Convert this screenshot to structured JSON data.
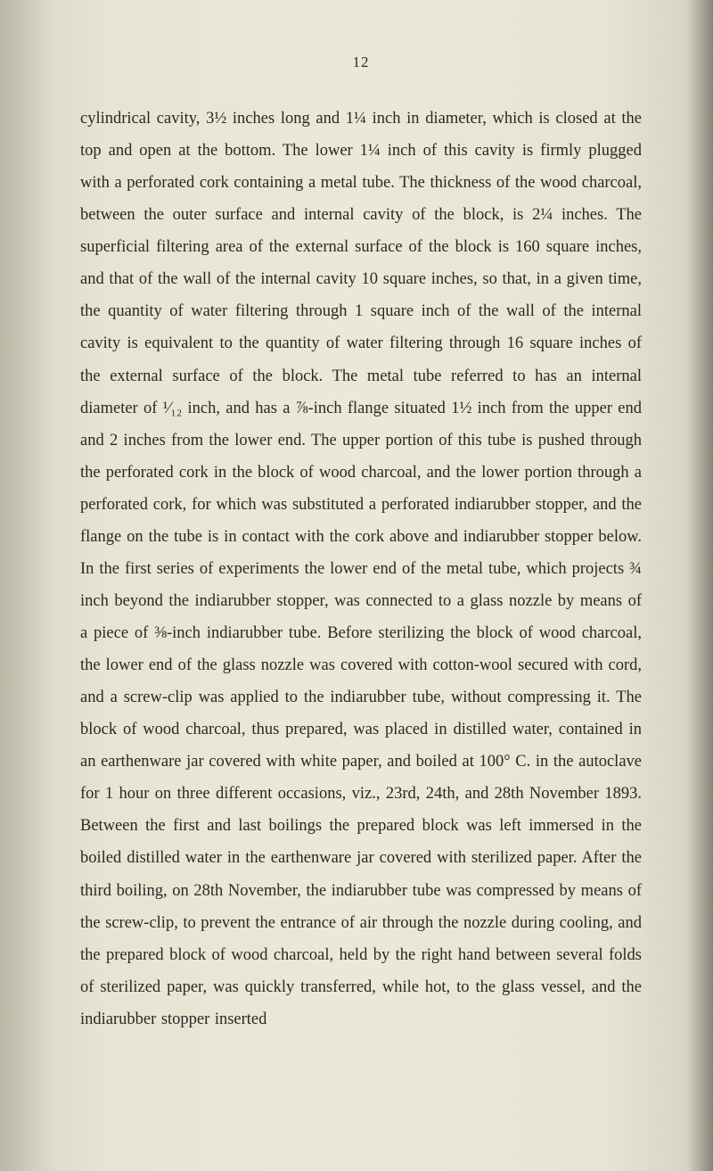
{
  "page": {
    "number": "12",
    "background_color": "#e8e4d4",
    "text_color": "#2a2824",
    "font_family": "Georgia, serif",
    "body_fontsize": 18.5,
    "line_height": 1.95,
    "body": "cylindrical cavity, 3½ inches long and 1¼ inch in diameter, which is closed at the top and open at the bottom. The lower 1¼ inch of this cavity is firmly plugged with a perforated cork containing a metal tube. The thickness of the wood charcoal, between the outer surface and internal cavity of the block, is 2¼ inches. The superficial filtering area of the external surface of the block is 160 square inches, and that of the wall of the internal cavity 10 square inches, so that, in a given time, the quantity of water filtering through 1 square inch of the wall of the internal cavity is equivalent to the quantity of water filtering through 16 square inches of the external surface of the block. The metal tube referred to has an internal diameter of ¹⁄₁₂ inch, and has a ⅞-inch flange situated 1½ inch from the upper end and 2 inches from the lower end. The upper portion of this tube is pushed through the perforated cork in the block of wood charcoal, and the lower portion through a perforated cork, for which was substituted a perforated indiarubber stopper, and the flange on the tube is in contact with the cork above and indiarubber stopper below. In the first series of experiments the lower end of the metal tube, which projects ¾ inch beyond the indiarubber stopper, was connected to a glass nozzle by means of a piece of ⅜-inch indiarubber tube. Before sterilizing the block of wood charcoal, the lower end of the glass nozzle was covered with cotton-wool secured with cord, and a screw-clip was applied to the indiarubber tube, without compressing it. The block of wood charcoal, thus prepared, was placed in distilled water, contained in an earthenware jar covered with white paper, and boiled at 100° C. in the autoclave for 1 hour on three different occasions, viz., 23rd, 24th, and 28th November 1893. Between the first and last boilings the prepared block was left immersed in the boiled distilled water in the earthenware jar covered with sterilized paper. After the third boiling, on 28th November, the indiarubber tube was compressed by means of the screw-clip, to prevent the entrance of air through the nozzle during cooling, and the prepared block of wood charcoal, held by the right hand between several folds of sterilized paper, was quickly transferred, while hot, to the glass vessel, and the indiarubber stopper inserted"
  }
}
